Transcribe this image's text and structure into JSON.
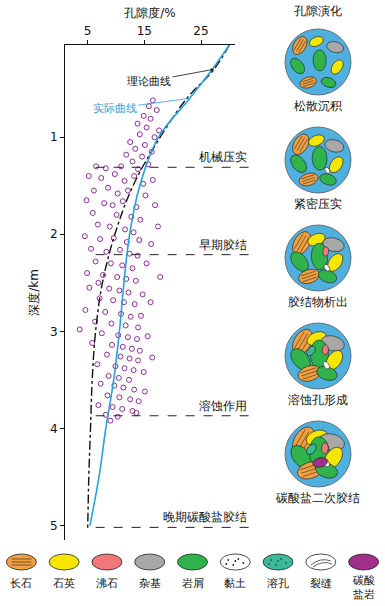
{
  "chart_data": {
    "type": "scatter",
    "x_label": "孔隙度/%",
    "y_label": "深度/km",
    "xlim": [
      1,
      31
    ],
    "ylim": [
      5.15,
      0.05
    ],
    "xticks": [
      5,
      15,
      25
    ],
    "yticks": [
      1,
      2,
      3,
      4,
      5
    ],
    "series": [
      {
        "type": "scatter",
        "marker": "circle-open",
        "color": "#8e2c9c",
        "x": [
          16.5,
          15.8,
          17.2,
          14.9,
          16.1,
          13.8,
          15.4,
          17.6,
          14.2,
          16.8,
          12.5,
          15.1,
          13.4,
          16.3,
          11.8,
          14.6,
          12.9,
          15.7,
          10.9,
          13.9,
          8.2,
          6.5,
          5.2,
          7.4,
          9.8,
          11.5,
          13.2,
          14.8,
          16.5,
          6.1,
          8.6,
          10.3,
          12.1,
          15.2,
          4.8,
          7.9,
          9.4,
          11.2,
          13.6,
          16.9,
          5.9,
          10.1,
          12.7,
          14.3,
          6.8,
          8.9,
          11.6,
          13.1,
          17.4,
          4.5,
          7.2,
          9.6,
          11.9,
          14.1,
          16.2,
          5.6,
          8.3,
          10.7,
          12.4,
          13.8,
          6.4,
          9.1,
          11.1,
          12.9,
          15.4,
          4.9,
          7.7,
          10.2,
          11.8,
          13.5,
          17.8,
          6.9,
          5.3,
          8.8,
          10.6,
          12.2,
          14.7,
          7.1,
          9.5,
          11.4,
          13.3,
          16.1,
          4.6,
          8.1,
          10.9,
          12.6,
          14.4,
          6.3,
          9.2,
          11.7,
          13.9,
          3.6,
          7.5,
          10.4,
          12.1,
          13.7,
          15.6,
          5.8,
          9.3,
          11.2,
          12.8,
          14.2,
          8.4,
          10.8,
          12.4,
          13.9,
          16.4,
          6.7,
          9.9,
          11.5,
          13.1,
          14.9,
          8.7,
          10.5,
          12.3,
          7.3,
          9.7,
          11.3,
          13.2,
          15.1,
          8.5,
          10.6,
          12.5,
          14.0,
          6.9,
          9.4,
          11.1,
          12.9,
          8.2,
          10.3,
          13.6,
          9.0
        ],
        "y": [
          0.62,
          0.68,
          0.72,
          0.78,
          0.81,
          0.86,
          0.9,
          0.93,
          0.97,
          1.0,
          1.05,
          1.08,
          1.12,
          1.15,
          1.18,
          1.2,
          1.25,
          1.28,
          1.3,
          1.33,
          1.32,
          1.3,
          1.4,
          1.42,
          1.38,
          1.45,
          1.4,
          1.48,
          1.44,
          1.55,
          1.52,
          1.58,
          1.55,
          1.6,
          1.65,
          1.68,
          1.7,
          1.66,
          1.72,
          1.7,
          1.78,
          1.8,
          1.82,
          1.85,
          1.9,
          1.92,
          1.95,
          1.98,
          1.92,
          2.02,
          2.05,
          2.04,
          2.08,
          2.06,
          2.1,
          2.15,
          2.18,
          2.16,
          2.2,
          2.22,
          2.28,
          2.3,
          2.32,
          2.35,
          2.3,
          2.4,
          2.42,
          2.44,
          2.46,
          2.48,
          2.44,
          2.5,
          2.55,
          2.56,
          2.58,
          2.6,
          2.62,
          2.66,
          2.68,
          2.7,
          2.72,
          2.7,
          2.78,
          2.8,
          2.82,
          2.85,
          2.84,
          2.9,
          2.92,
          2.94,
          2.96,
          2.98,
          3.02,
          3.04,
          3.06,
          3.08,
          3.05,
          3.12,
          3.14,
          3.16,
          3.18,
          3.2,
          3.24,
          3.26,
          3.28,
          3.3,
          3.27,
          3.34,
          3.36,
          3.38,
          3.4,
          3.42,
          3.46,
          3.48,
          3.5,
          3.54,
          3.56,
          3.58,
          3.6,
          3.62,
          3.66,
          3.68,
          3.7,
          3.72,
          3.76,
          3.78,
          3.8,
          3.82,
          3.86,
          3.88,
          3.84,
          3.92
        ]
      },
      {
        "name": "理论曲线",
        "type": "line",
        "line_style": "dashdot",
        "color": "#111111",
        "x": [
          30,
          27.3,
          22.5,
          17.8,
          13,
          9.8,
          7.6,
          6.4,
          5.8,
          5.5,
          5.2,
          5.0
        ],
        "y": [
          0.05,
          0.3,
          0.6,
          1.0,
          1.5,
          2.0,
          2.5,
          3.0,
          3.5,
          4.0,
          4.5,
          5.05
        ]
      },
      {
        "name": "实际曲线",
        "type": "line",
        "line_style": "solid",
        "color": "#2aa0d8",
        "x": [
          30,
          27,
          23,
          17.5,
          14.2,
          12.4,
          11.4,
          10.6,
          9.6,
          8.2,
          7.0,
          5.4
        ],
        "y": [
          0.05,
          0.3,
          0.6,
          1.0,
          1.5,
          2.0,
          2.5,
          3.0,
          3.5,
          4.0,
          4.5,
          5.0
        ]
      }
    ],
    "annotations": [
      {
        "text": "机械压实",
        "y": 1.31
      },
      {
        "text": "早期胶结",
        "y": 2.21
      },
      {
        "text": "溶蚀作用",
        "y": 3.87
      },
      {
        "text": "晚期碳酸盐胶结",
        "y": 5.02
      }
    ]
  },
  "pore_evolution": {
    "title": "孔隙演化",
    "stages": [
      "松散沉积",
      "紧密压实",
      "胶结物析出",
      "溶蚀孔形成",
      "碳酸盐二次胶结"
    ]
  },
  "legend_items": [
    {
      "label": "长石",
      "color": "#f0a040"
    },
    {
      "label": "石英",
      "color": "#f5e600"
    },
    {
      "label": "沸石",
      "color": "#f07878"
    },
    {
      "label": "杂基",
      "color": "#a8a8a8"
    },
    {
      "label": "岩屑",
      "color": "#2fb34a"
    },
    {
      "label": "黏土",
      "color": "#ffffff"
    },
    {
      "label": "溶孔",
      "color": "#3cb89a"
    },
    {
      "label": "裂缝",
      "color": "#ffffff"
    },
    {
      "label": "碳酸盐岩",
      "color": "#a0308a"
    }
  ]
}
